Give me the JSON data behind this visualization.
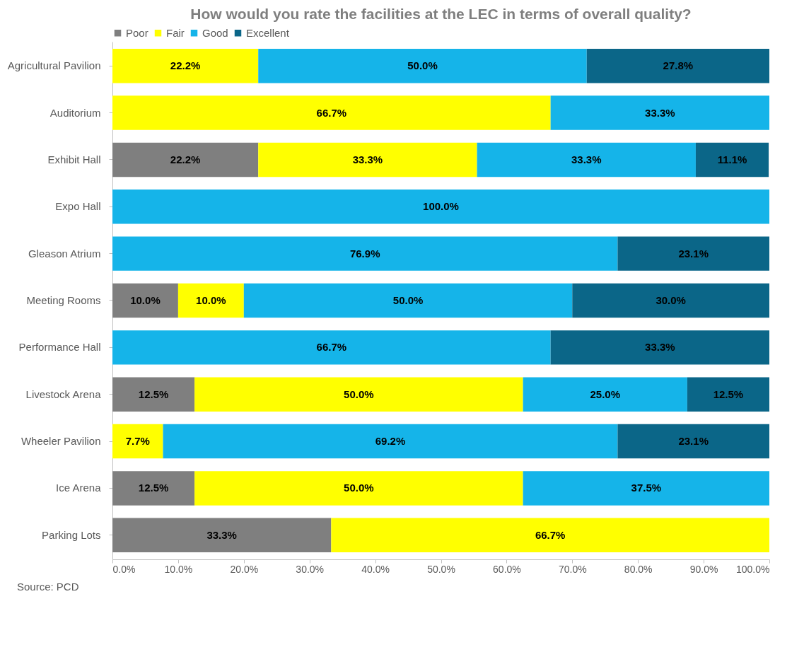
{
  "chart_data": {
    "type": "bar",
    "orientation": "horizontal",
    "stacked": true,
    "title": "How would you rate the facilities at the LEC in terms of overall quality?",
    "categories": [
      "Agricultural Pavilion",
      "Auditorium",
      "Exhibit Hall",
      "Expo Hall",
      "Gleason Atrium",
      "Meeting Rooms",
      "Performance Hall",
      "Livestock Arena",
      "Wheeler Pavilion",
      "Ice Arena",
      "Parking Lots"
    ],
    "series": [
      {
        "name": "Poor",
        "color": "#7f7f7f",
        "values": [
          null,
          null,
          22.2,
          null,
          null,
          10.0,
          null,
          12.5,
          null,
          12.5,
          33.3
        ],
        "value_labels": [
          null,
          null,
          "22.2%",
          null,
          null,
          "10.0%",
          null,
          "12.5%",
          null,
          "12.5%",
          "33.3%"
        ]
      },
      {
        "name": "Fair",
        "color": "#ffff00",
        "values": [
          22.2,
          66.7,
          33.3,
          null,
          null,
          10.0,
          null,
          50.0,
          7.7,
          50.0,
          66.7
        ],
        "value_labels": [
          "22.2%",
          "66.7%",
          "33.3%",
          null,
          null,
          "10.0%",
          null,
          "50.0%",
          "7.7%",
          "50.0%",
          "66.7%"
        ]
      },
      {
        "name": "Good",
        "color": "#15b4e9",
        "values": [
          50.0,
          33.3,
          33.3,
          100.0,
          76.9,
          50.0,
          66.7,
          25.0,
          69.2,
          37.5,
          null
        ],
        "value_labels": [
          "50.0%",
          "33.3%",
          "33.3%",
          "100.0%",
          "76.9%",
          "50.0%",
          "66.7%",
          "25.0%",
          "69.2%",
          "37.5%",
          null
        ]
      },
      {
        "name": "Excellent",
        "color": "#0b6688",
        "values": [
          27.8,
          null,
          11.1,
          null,
          23.1,
          30.0,
          33.3,
          12.5,
          23.1,
          null,
          null
        ],
        "value_labels": [
          "27.8%",
          null,
          "11.1%",
          null,
          "23.1%",
          "30.0%",
          "33.3%",
          "12.5%",
          "23.1%",
          null,
          null
        ]
      }
    ],
    "xlim": [
      0,
      100
    ],
    "xticks": [
      {
        "value": 0,
        "label": "0.0%"
      },
      {
        "value": 10,
        "label": "10.0%"
      },
      {
        "value": 20,
        "label": "20.0%"
      },
      {
        "value": 30,
        "label": "30.0%"
      },
      {
        "value": 40,
        "label": "40.0%"
      },
      {
        "value": 50,
        "label": "50.0%"
      },
      {
        "value": 60,
        "label": "60.0%"
      },
      {
        "value": 70,
        "label": "70.0%"
      },
      {
        "value": 80,
        "label": "80.0%"
      },
      {
        "value": 90,
        "label": "90.0%"
      },
      {
        "value": 100,
        "label": "100.0%"
      }
    ],
    "grid": false,
    "legend": "top left",
    "annotations": [
      "Source: PCD"
    ]
  }
}
